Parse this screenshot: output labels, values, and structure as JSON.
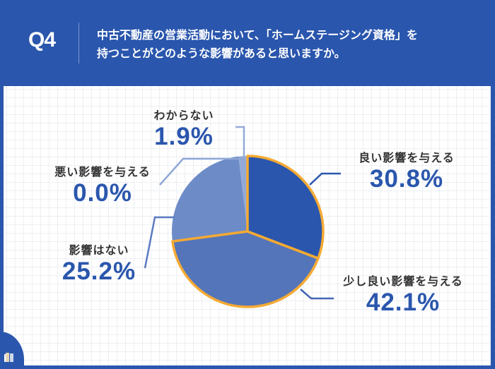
{
  "header": {
    "question_number": "Q4",
    "question_line1": "中古不動産の営業活動において、「ホームステージング資格」を",
    "question_line2": "持つことがどのような影響があると思いますか。"
  },
  "colors": {
    "background": "#2a56ad",
    "slice_good": "#2a56ad",
    "slice_slightly_good": "#5475ba",
    "slice_none": "#6d8bc7",
    "slice_bad": "#6d8bc7",
    "slice_unknown": "#93aad8",
    "highlight_border": "#f5aa33",
    "percent_text": "#2a56ad"
  },
  "labels": {
    "good": {
      "cat": "良い影響を与える",
      "pct": "30.8%"
    },
    "slightly_good": {
      "cat": "少し良い影響を与える",
      "pct": "42.1%"
    },
    "none": {
      "cat": "影響はない",
      "pct": "25.2%"
    },
    "bad": {
      "cat": "悪い影響を与える",
      "pct": "0.0%"
    },
    "unknown": {
      "cat": "わからない",
      "pct": "1.9%"
    }
  },
  "chart_data": {
    "type": "pie",
    "title": "中古不動産の営業活動において、「ホームステージング資格」を持つことがどのような影響があると思いますか。",
    "categories": [
      "良い影響を与える",
      "少し良い影響を与える",
      "影響はない",
      "悪い影響を与える",
      "わからない"
    ],
    "values": [
      30.8,
      42.1,
      25.2,
      0.0,
      1.9
    ],
    "unit": "%",
    "start_angle": "12 o'clock, clockwise",
    "highlighted": [
      "良い影響を与える",
      "少し良い影響を与える"
    ]
  }
}
